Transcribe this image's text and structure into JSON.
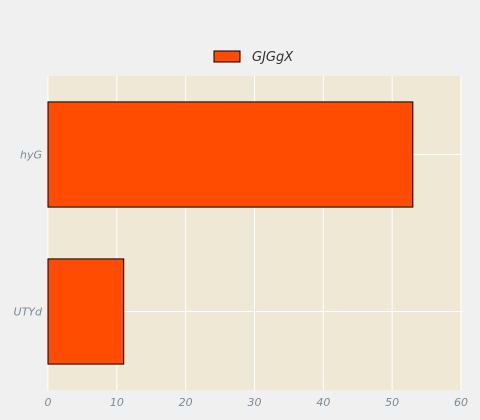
{
  "chart_data": {
    "type": "bar",
    "orientation": "horizontal",
    "categories": [
      "UTYd",
      "hyG"
    ],
    "series": [
      {
        "name": "GJGgX",
        "values": [
          11,
          53
        ],
        "color": "#ff4c00"
      }
    ],
    "xlim": [
      0,
      60
    ],
    "xticks": [
      "0",
      "10",
      "20",
      "30",
      "40",
      "50",
      "60"
    ],
    "grid": true,
    "legend_position": "top-center",
    "colors": {
      "page_background": "#f0f0f0",
      "plot_background": "#eee8d5",
      "grid": "#ffffff",
      "bar_edge": "#000000"
    }
  }
}
